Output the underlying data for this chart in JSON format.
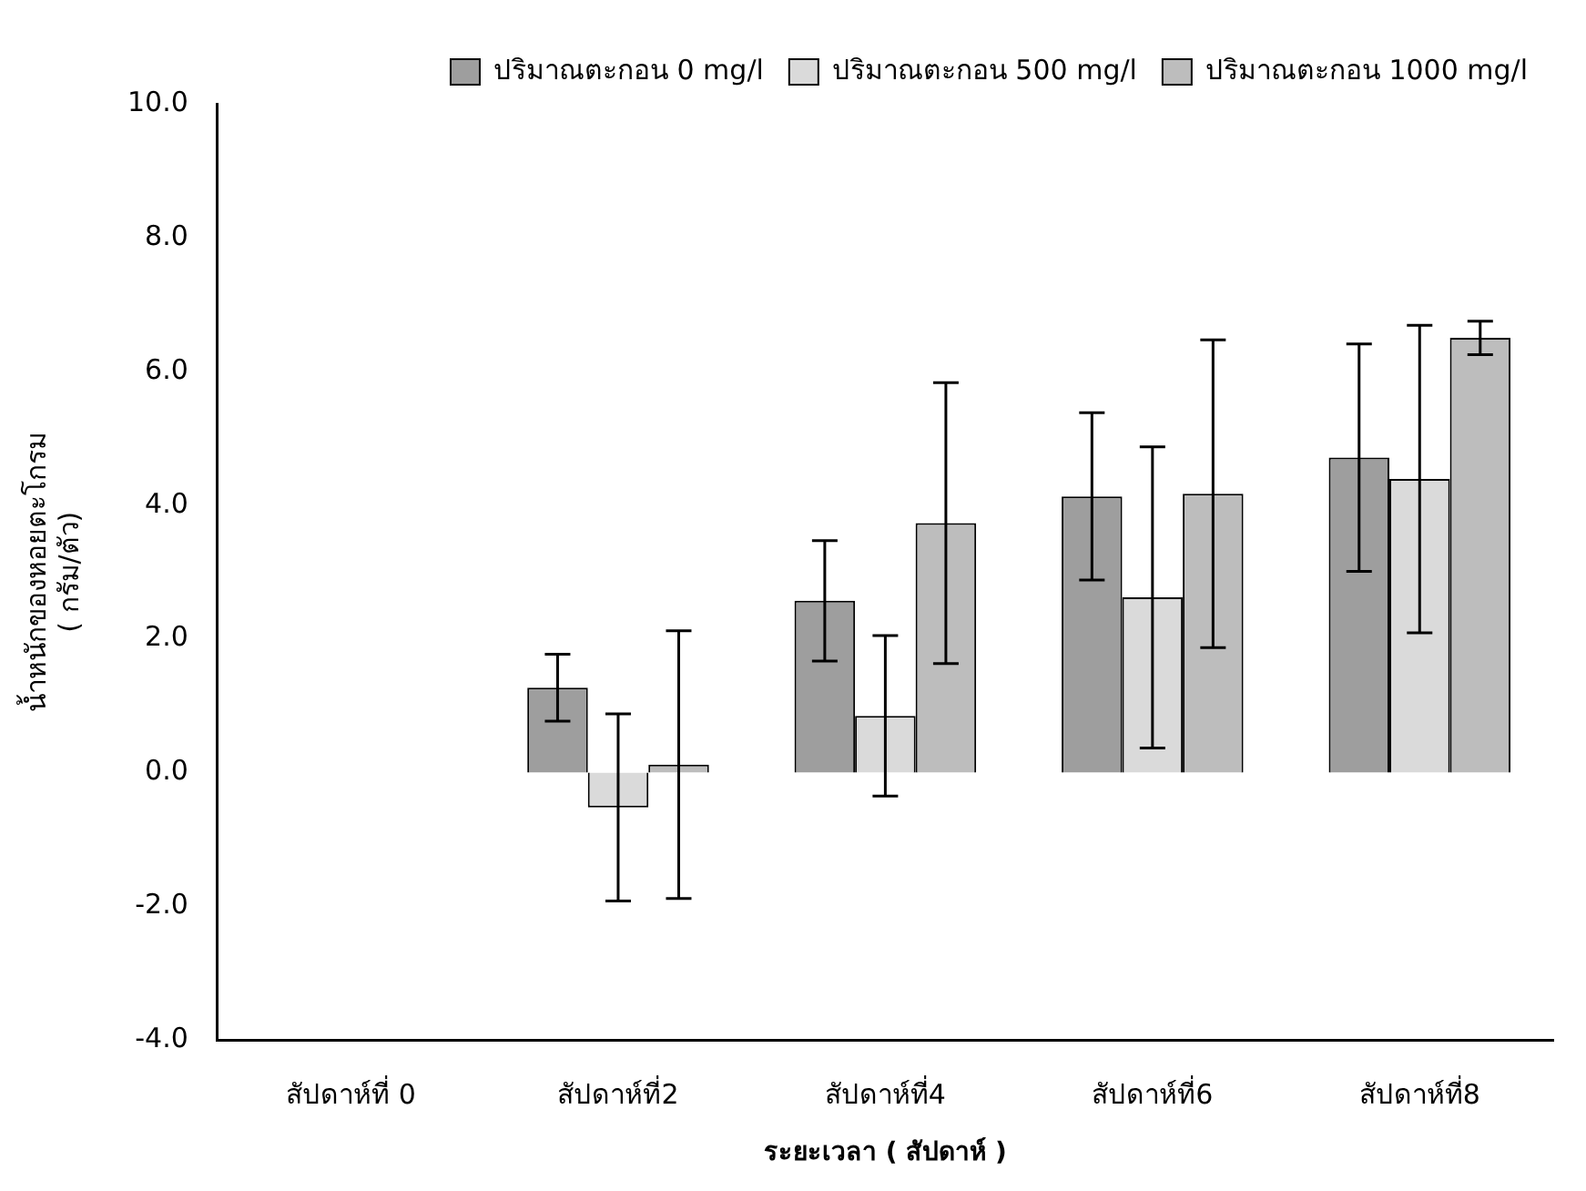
{
  "chart_data": {
    "type": "bar",
    "xlabel": "ระยะเวลา ( สัปดาห์ )",
    "ylabel": "น้ำหนักของหอยตะโกรม\n( กรัม/ตัว)",
    "categories": [
      "สัปดาห์ที่ 0",
      "สัปดาห์ที่2",
      "สัปดาห์ที่4",
      "สัปดาห์ที่6",
      "สัปดาห์ที่8"
    ],
    "series": [
      {
        "name": "ปริมาณตะกอน 0 mg/l",
        "color": "#9e9e9e",
        "values": [
          0,
          1.27,
          2.57,
          4.13,
          4.71
        ],
        "errors": [
          null,
          0.5,
          0.9,
          1.25,
          1.7
        ]
      },
      {
        "name": "ปริมาณตะกอน 500 mg/l",
        "color": "#dadada",
        "values": [
          0,
          -0.52,
          0.85,
          2.62,
          4.39
        ],
        "errors": [
          null,
          1.4,
          1.2,
          2.25,
          2.3
        ]
      },
      {
        "name": "ปริมาณตะกอน 1000 mg/l",
        "color": "#bdbdbd",
        "values": [
          0,
          0.12,
          3.73,
          4.17,
          6.5
        ],
        "errors": [
          null,
          2.0,
          2.1,
          2.3,
          0.25
        ]
      }
    ],
    "ylim": [
      -4,
      10
    ],
    "yticks": [
      {
        "value": -4,
        "label": "-4.0"
      },
      {
        "value": -2,
        "label": "-2.0"
      },
      {
        "value": 0,
        "label": "0.0"
      },
      {
        "value": 2,
        "label": "2.0"
      },
      {
        "value": 4,
        "label": "4.0"
      },
      {
        "value": 6,
        "label": "6.0"
      },
      {
        "value": 8,
        "label": "8.0"
      },
      {
        "value": 10,
        "label": "10.0"
      }
    ],
    "legend": "top right"
  }
}
